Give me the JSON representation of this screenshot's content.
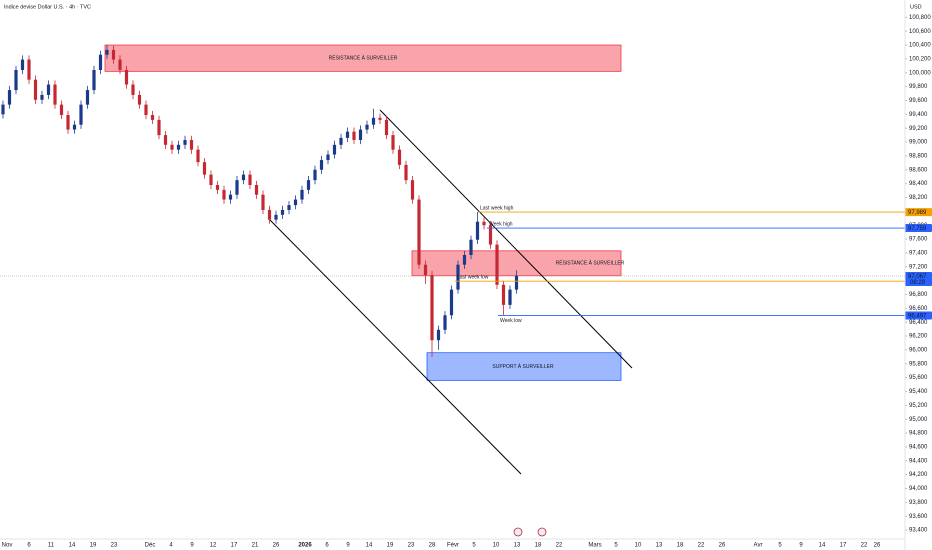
{
  "chart_data": {
    "type": "candlestick",
    "title": "Indice devise Dollar U.S. · 4h · TVC",
    "currency": "USD",
    "up_color": "#1b3a8c",
    "down_color": "#c62833",
    "ylim": [
      93300,
      101050
    ],
    "yticks": [
      {
        "value": 100800,
        "label": "100,800"
      },
      {
        "value": 100600,
        "label": "100,600"
      },
      {
        "value": 100400,
        "label": "100,400"
      },
      {
        "value": 100200,
        "label": "100,200"
      },
      {
        "value": 100000,
        "label": "100,000"
      },
      {
        "value": 99800,
        "label": "99,800"
      },
      {
        "value": 99600,
        "label": "99,600"
      },
      {
        "value": 99400,
        "label": "99,400"
      },
      {
        "value": 99200,
        "label": "99,200"
      },
      {
        "value": 99000,
        "label": "99,000"
      },
      {
        "value": 98800,
        "label": "98,800"
      },
      {
        "value": 98600,
        "label": "98,600"
      },
      {
        "value": 98400,
        "label": "98,400"
      },
      {
        "value": 98200,
        "label": "98,200"
      },
      {
        "value": 98000,
        "label": "98,000"
      },
      {
        "value": 97800,
        "label": "97,800"
      },
      {
        "value": 97600,
        "label": "97,600"
      },
      {
        "value": 97400,
        "label": "97,400"
      },
      {
        "value": 97200,
        "label": "97,200"
      },
      {
        "value": 97000,
        "label": "97,000"
      },
      {
        "value": 96800,
        "label": "96,800"
      },
      {
        "value": 96600,
        "label": "96,600"
      },
      {
        "value": 96400,
        "label": "96,400"
      },
      {
        "value": 96200,
        "label": "96,200"
      },
      {
        "value": 96000,
        "label": "96,000"
      },
      {
        "value": 95800,
        "label": "95,800"
      },
      {
        "value": 95600,
        "label": "95,600"
      },
      {
        "value": 95400,
        "label": "95,400"
      },
      {
        "value": 95200,
        "label": "95,200"
      },
      {
        "value": 95000,
        "label": "95,000"
      },
      {
        "value": 94800,
        "label": "94,800"
      },
      {
        "value": 94600,
        "label": "94,600"
      },
      {
        "value": 94400,
        "label": "94,400"
      },
      {
        "value": 94200,
        "label": "94,200"
      },
      {
        "value": 94000,
        "label": "94,000"
      },
      {
        "value": 93800,
        "label": "93,800"
      },
      {
        "value": 93600,
        "label": "93,600"
      },
      {
        "value": 93400,
        "label": "93,400"
      }
    ],
    "x_labels": [
      "Nov",
      "6",
      "11",
      "14",
      "19",
      "23",
      "Déc",
      "4",
      "9",
      "12",
      "17",
      "21",
      "26",
      "2026",
      "6",
      "9",
      "14",
      "19",
      "23",
      "28",
      "Févr",
      "5",
      "10",
      "13",
      "18",
      "22",
      "Mars",
      "5",
      "10",
      "13",
      "18",
      "22",
      "26",
      "Avr",
      "5",
      "9",
      "14",
      "17",
      "22",
      "26"
    ],
    "open": [
      99400,
      99540,
      99750,
      100040,
      100190,
      99900,
      99610,
      99680,
      99830,
      99540,
      99390,
      99180,
      99250,
      99540,
      99750,
      100040,
      100260,
      100330,
      100190,
      100040,
      99830,
      99680,
      99540,
      99390,
      99320,
      99100,
      98960,
      98890,
      98960,
      99030,
      98890,
      98710,
      98530,
      98380,
      98310,
      98170,
      98240,
      98450,
      98530,
      98380,
      98240,
      98020,
      97880,
      97950,
      98020,
      98090,
      98170,
      98310,
      98450,
      98600,
      98740,
      98820,
      98960,
      99060,
      99150,
      99030,
      99180,
      99250,
      99350,
      99320,
      99100,
      98890,
      98670,
      98450,
      98170,
      97230,
      97080,
      96140,
      96290,
      96500,
      96870,
      97230,
      97370,
      97590,
      97850,
      97800,
      97520,
      96940,
      96650,
      96870
    ],
    "high": [
      99600,
      99810,
      100100,
      100250,
      100250,
      99960,
      99740,
      99890,
      99890,
      99600,
      99450,
      99310,
      99600,
      99810,
      100100,
      100320,
      100400,
      100390,
      100250,
      100100,
      99890,
      99740,
      99600,
      99450,
      99380,
      99160,
      99020,
      99020,
      99090,
      99090,
      98950,
      98770,
      98590,
      98440,
      98370,
      98300,
      98510,
      98590,
      98590,
      98440,
      98300,
      98080,
      98010,
      98080,
      98150,
      98230,
      98370,
      98510,
      98660,
      98800,
      98880,
      99020,
      99120,
      99210,
      99210,
      99240,
      99310,
      99480,
      99410,
      99380,
      99160,
      98950,
      98730,
      98510,
      98230,
      97290,
      97140,
      96350,
      96560,
      96930,
      97290,
      97430,
      97650,
      97990,
      97910,
      97860,
      97580,
      97000,
      96930,
      97150
    ],
    "low": [
      99340,
      99480,
      99690,
      99980,
      99840,
      99550,
      99550,
      99620,
      99480,
      99330,
      99120,
      99120,
      99190,
      99480,
      99690,
      99980,
      100200,
      100130,
      99980,
      99770,
      99620,
      99480,
      99330,
      99260,
      99040,
      98900,
      98830,
      98830,
      98900,
      98830,
      98650,
      98470,
      98320,
      98250,
      98110,
      98110,
      98180,
      98390,
      98320,
      98180,
      97960,
      97820,
      97820,
      97890,
      97960,
      98030,
      98110,
      98250,
      98390,
      98540,
      98680,
      98760,
      98900,
      99000,
      98970,
      98970,
      99120,
      99190,
      99260,
      99040,
      98830,
      98610,
      98390,
      98110,
      97170,
      96950,
      95900,
      96000,
      96230,
      96440,
      96810,
      97170,
      97310,
      97530,
      97740,
      97460,
      96880,
      96500,
      96590,
      96810
    ],
    "close": [
      99540,
      99750,
      100040,
      100190,
      99900,
      99610,
      99680,
      99830,
      99540,
      99390,
      99180,
      99250,
      99540,
      99750,
      100040,
      100260,
      100330,
      100190,
      100040,
      99830,
      99680,
      99540,
      99390,
      99320,
      99100,
      98960,
      98890,
      98960,
      99030,
      98890,
      98710,
      98530,
      98380,
      98310,
      98170,
      98240,
      98450,
      98530,
      98380,
      98240,
      98020,
      97880,
      97950,
      98020,
      98090,
      98170,
      98310,
      98450,
      98600,
      98740,
      98820,
      98960,
      99060,
      99150,
      99030,
      99180,
      99250,
      99350,
      99320,
      99100,
      98890,
      98670,
      98450,
      98170,
      97230,
      97080,
      96140,
      96290,
      96500,
      96870,
      97230,
      97370,
      97590,
      97850,
      97800,
      97520,
      96940,
      96650,
      96870,
      97067
    ],
    "zones": [
      {
        "label": "RÉSISTANCE À SURVEILLER",
        "from": 100020,
        "to": 100400,
        "color": "#f23645"
      },
      {
        "label": "RÉSISTANCE À SURVEILLER",
        "from": 97070,
        "to": 97430,
        "color": "#f23645"
      },
      {
        "label": "SUPPORT À SURVEILLER",
        "from": 95560,
        "to": 95960,
        "color": "#2962ff"
      }
    ],
    "levels": [
      {
        "name": "Last week high",
        "value": 97989,
        "label": "97,989",
        "color": "#f59f00"
      },
      {
        "name": "Week high",
        "value": 97759,
        "label": "97,759",
        "color": "#2962ff"
      },
      {
        "name": "Last week low",
        "value": 96992,
        "label": "96,992",
        "color": "#f59f00"
      },
      {
        "name": "Week low",
        "value": 96497,
        "label": "96,497",
        "color": "#2962ff"
      }
    ],
    "last_price": {
      "value": 97067,
      "label": "97,067"
    },
    "countdown": "08:29"
  }
}
